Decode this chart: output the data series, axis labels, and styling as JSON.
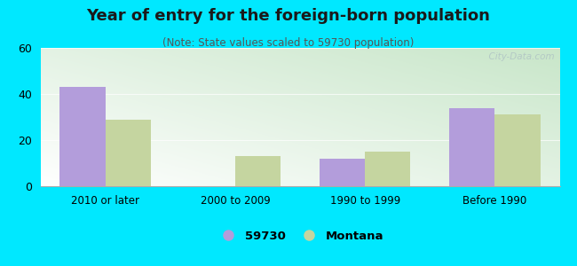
{
  "title": "Year of entry for the foreign-born population",
  "subtitle": "(Note: State values scaled to 59730 population)",
  "categories": [
    "2010 or later",
    "2000 to 2009",
    "1990 to 1999",
    "Before 1990"
  ],
  "series_59730": [
    43,
    0,
    12,
    34
  ],
  "series_montana": [
    29,
    13,
    15,
    31
  ],
  "color_59730": "#b39ddb",
  "color_montana": "#c5d5a0",
  "ylim": [
    0,
    60
  ],
  "yticks": [
    0,
    20,
    40,
    60
  ],
  "background_outer": "#00e8ff",
  "legend_label_59730": "59730",
  "legend_label_montana": "Montana",
  "bar_width": 0.35,
  "watermark": "  City-Data.com",
  "title_fontsize": 13,
  "subtitle_fontsize": 8.5
}
